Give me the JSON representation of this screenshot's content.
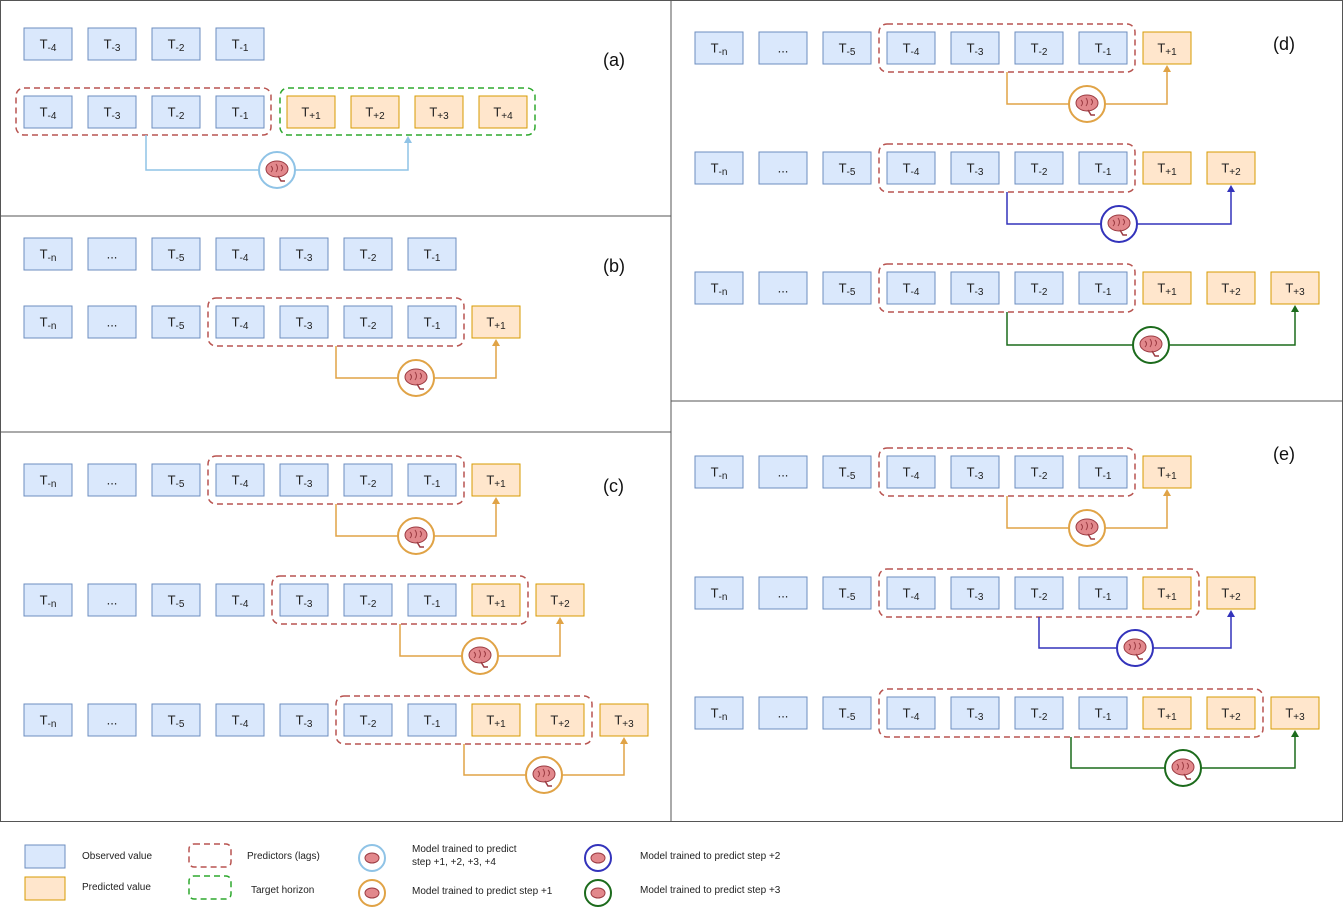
{
  "colors": {
    "observed_fill": "#dae8fc",
    "observed_stroke": "#6c8ebf",
    "predicted_fill": "#ffe6cc",
    "predicted_stroke": "#d79b00",
    "predictors_border": "#b85450",
    "target_border": "#2ea82e",
    "model_multi": "#8fc3e6",
    "model_step1": "#e0a346",
    "model_step2": "#3333bb",
    "model_step3": "#1c6b1c",
    "panel_border": "#555555"
  },
  "panels": {
    "a": {
      "label": "(a)",
      "row1": [
        "T-4",
        "T-3",
        "T-2",
        "T-1"
      ],
      "row2_obs": [
        "T-4",
        "T-3",
        "T-2",
        "T-1"
      ],
      "row2_pred": [
        "T+1",
        "T+2",
        "T+3",
        "T+4"
      ]
    },
    "b": {
      "label": "(b)",
      "row1": [
        "T-n",
        "...",
        "T-5",
        "T-4",
        "T-3",
        "T-2",
        "T-1"
      ],
      "row2": [
        "T-n",
        "...",
        "T-5",
        "T-4",
        "T-3",
        "T-2",
        "T-1",
        "T+1"
      ]
    },
    "c": {
      "label": "(c)",
      "row1": [
        "T-n",
        "...",
        "T-5",
        "T-4",
        "T-3",
        "T-2",
        "T-1",
        "T+1"
      ],
      "row2": [
        "T-n",
        "...",
        "T-5",
        "T-4",
        "T-3",
        "T-2",
        "T-1",
        "T+1",
        "T+2"
      ],
      "row3": [
        "T-n",
        "...",
        "T-5",
        "T-4",
        "T-3",
        "T-2",
        "T-1",
        "T+1",
        "T+2",
        "T+3"
      ]
    },
    "d": {
      "label": "(d)",
      "row1": [
        "T-n",
        "...",
        "T-5",
        "T-4",
        "T-3",
        "T-2",
        "T-1",
        "T+1"
      ],
      "row2": [
        "T-n",
        "...",
        "T-5",
        "T-4",
        "T-3",
        "T-2",
        "T-1",
        "T+1",
        "T+2"
      ],
      "row3": [
        "T-n",
        "...",
        "T-5",
        "T-4",
        "T-3",
        "T-2",
        "T-1",
        "T+1",
        "T+2",
        "T+3"
      ]
    },
    "e": {
      "label": "(e)",
      "row1": [
        "T-n",
        "...",
        "T-5",
        "T-4",
        "T-3",
        "T-2",
        "T-1",
        "T+1"
      ],
      "row2": [
        "T-n",
        "...",
        "T-5",
        "T-4",
        "T-3",
        "T-2",
        "T-1",
        "T+1",
        "T+2"
      ],
      "row3": [
        "T-n",
        "...",
        "T-5",
        "T-4",
        "T-3",
        "T-2",
        "T-1",
        "T+1",
        "T+2",
        "T+3"
      ]
    }
  },
  "legend": {
    "observed": "Observed value",
    "predicted": "Predicted value",
    "predictors": "Predictors (lags)",
    "target": "Target horizon",
    "model_multi_line1": "Model trained to predict",
    "model_multi_line2": "step +1, +2, +3, +4",
    "model_step1": "Model trained to predict step +1",
    "model_step2": "Model trained to predict step +2",
    "model_step3": "Model trained to predict step +3"
  }
}
